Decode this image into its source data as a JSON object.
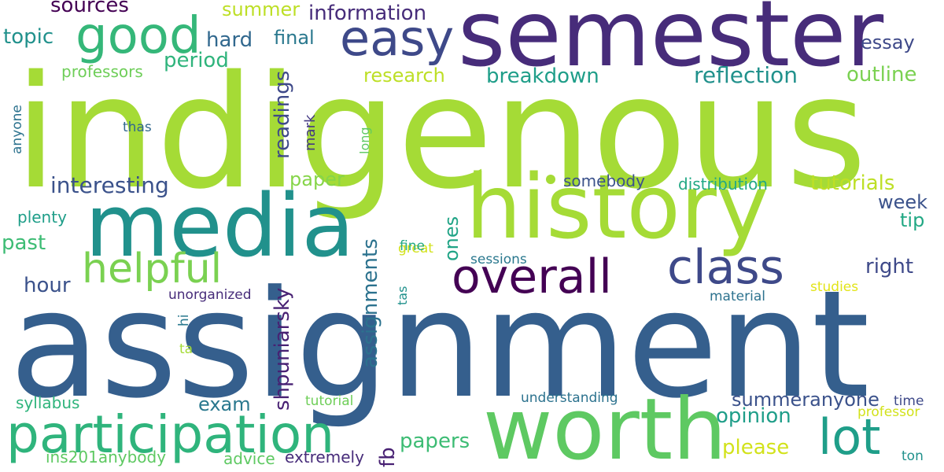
{
  "words": [
    {
      "text": "indigenous",
      "color": "#a5db36"
    },
    {
      "text": "assignment",
      "color": "#355f8d"
    },
    {
      "text": "semester",
      "color": "#472c7a"
    },
    {
      "text": "history",
      "color": "#a5db36"
    },
    {
      "text": "media",
      "color": "#21918c"
    },
    {
      "text": "worth",
      "color": "#5ec962"
    },
    {
      "text": "participation",
      "color": "#2fb47c"
    },
    {
      "text": "easy",
      "color": "#3e4989"
    },
    {
      "text": "good",
      "color": "#35b779"
    },
    {
      "text": "overall",
      "color": "#440154"
    },
    {
      "text": "class",
      "color": "#3e4989"
    },
    {
      "text": "lot",
      "color": "#1f9e89"
    },
    {
      "text": "helpful",
      "color": "#7ad151"
    },
    {
      "text": "interesting",
      "color": "#3b528b"
    },
    {
      "text": "information",
      "color": "#472c7a"
    },
    {
      "text": "sources",
      "color": "#440154"
    },
    {
      "text": "summer",
      "color": "#bddf26"
    },
    {
      "text": "topic",
      "color": "#21918c"
    },
    {
      "text": "hard",
      "color": "#31688e"
    },
    {
      "text": "final",
      "color": "#2a788e"
    },
    {
      "text": "period",
      "color": "#2fb47c"
    },
    {
      "text": "professors",
      "color": "#6ece58"
    },
    {
      "text": "research",
      "color": "#bddf26"
    },
    {
      "text": "breakdown",
      "color": "#1f9e89"
    },
    {
      "text": "reflection",
      "color": "#21918c"
    },
    {
      "text": "outline",
      "color": "#7ad151"
    },
    {
      "text": "essay",
      "color": "#3e4989"
    },
    {
      "text": "readings",
      "color": "#3e4989"
    },
    {
      "text": "mark",
      "color": "#443983"
    },
    {
      "text": "anyone",
      "color": "#2c728e"
    },
    {
      "text": "thas",
      "color": "#31688e"
    },
    {
      "text": "long",
      "color": "#5ec962"
    },
    {
      "text": "paper",
      "color": "#86d549"
    },
    {
      "text": "somebody",
      "color": "#3b528b"
    },
    {
      "text": "distribution",
      "color": "#22a884"
    },
    {
      "text": "tutorials",
      "color": "#bddf26"
    },
    {
      "text": "week",
      "color": "#3b528b"
    },
    {
      "text": "tip",
      "color": "#22a884"
    },
    {
      "text": "plenty",
      "color": "#1f9e89"
    },
    {
      "text": "past",
      "color": "#3dbc74"
    },
    {
      "text": "ones",
      "color": "#20a486"
    },
    {
      "text": "great",
      "color": "#d2e21b"
    },
    {
      "text": "fine",
      "color": "#22a884"
    },
    {
      "text": "right",
      "color": "#3e4989"
    },
    {
      "text": "sessions",
      "color": "#2a788e"
    },
    {
      "text": "hour",
      "color": "#3b528b"
    },
    {
      "text": "unorganized",
      "color": "#472c7a"
    },
    {
      "text": "shpuniarsky",
      "color": "#482173"
    },
    {
      "text": "assignments",
      "color": "#2c728e"
    },
    {
      "text": "tas",
      "color": "#21918c"
    },
    {
      "text": "studies",
      "color": "#e2e418"
    },
    {
      "text": "material",
      "color": "#2c728e"
    },
    {
      "text": "hi",
      "color": "#2a788e"
    },
    {
      "text": "ta",
      "color": "#a5db36"
    },
    {
      "text": "exam",
      "color": "#2a788e"
    },
    {
      "text": "syllabus",
      "color": "#2fb47c"
    },
    {
      "text": "tutorial",
      "color": "#6ece58"
    },
    {
      "text": "understanding",
      "color": "#2c728e"
    },
    {
      "text": "summeranyone",
      "color": "#3b528b"
    },
    {
      "text": "time",
      "color": "#3e4989"
    },
    {
      "text": "professor",
      "color": "#d2e21b"
    },
    {
      "text": "opinion",
      "color": "#1f9e89"
    },
    {
      "text": "please",
      "color": "#d2e21b"
    },
    {
      "text": "papers",
      "color": "#3dbc74"
    },
    {
      "text": "fb",
      "color": "#482173"
    },
    {
      "text": "ins201anybody",
      "color": "#5ec962"
    },
    {
      "text": "advice",
      "color": "#5ec962"
    },
    {
      "text": "extremely",
      "color": "#472c7a"
    },
    {
      "text": "ton",
      "color": "#21918c"
    }
  ]
}
